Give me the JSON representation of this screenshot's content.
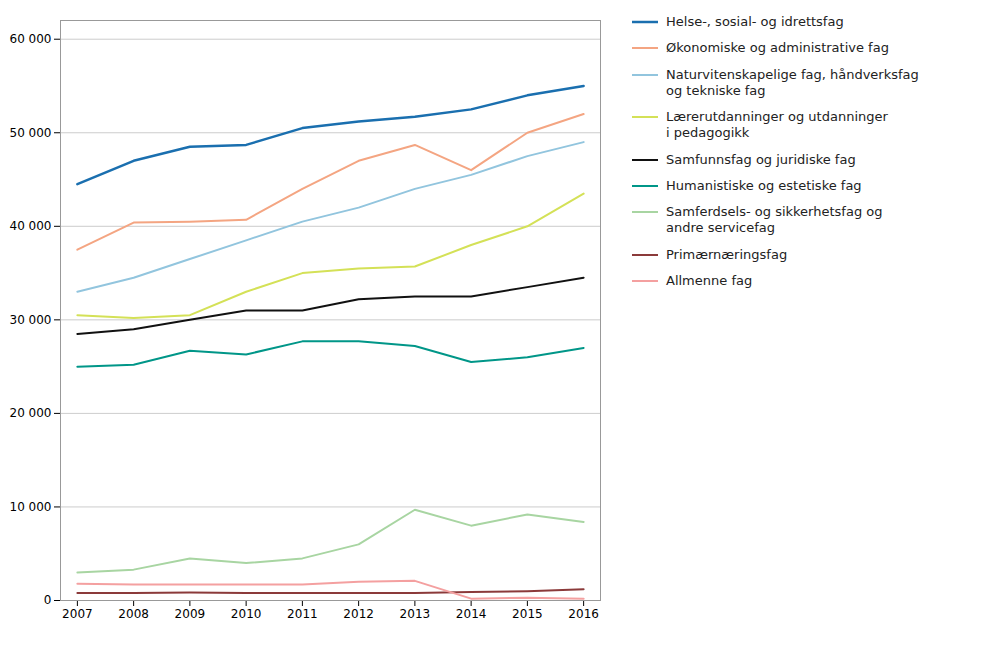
{
  "chart_data": {
    "type": "line",
    "x": [
      2007,
      2008,
      2009,
      2010,
      2011,
      2012,
      2013,
      2014,
      2015,
      2016
    ],
    "xlim": [
      2006.7,
      2016.3
    ],
    "xticks": [
      2007,
      2008,
      2009,
      2010,
      2011,
      2012,
      2013,
      2014,
      2015,
      2016
    ],
    "ylim": [
      0,
      62000
    ],
    "yticks": [
      0,
      {
        "value": 10000,
        "label": "10 000"
      },
      {
        "value": 20000,
        "label": "20 000"
      },
      {
        "value": 30000,
        "label": "30 000"
      },
      {
        "value": 40000,
        "label": "40 000"
      },
      {
        "value": 50000,
        "label": "50 000"
      },
      {
        "value": 60000,
        "label": "60 000"
      }
    ],
    "grid": true,
    "legend": "right",
    "series": [
      {
        "name": "Helse-, sosial- og idrettsfag",
        "color": "#1a6faf",
        "values": [
          44500,
          47000,
          48500,
          48700,
          50500,
          51200,
          51700,
          52500,
          54000,
          55000
        ]
      },
      {
        "name": "Økonomiske og administrative fag",
        "color": "#f4a582",
        "values": [
          37500,
          40400,
          40500,
          40700,
          44000,
          47000,
          48700,
          46000,
          50000,
          52000
        ]
      },
      {
        "name": "Naturvitenskapelige fag, håndverksfag\nog tekniske fag",
        "color": "#92c5de",
        "values": [
          33000,
          34500,
          36500,
          38500,
          40500,
          42000,
          44000,
          45500,
          47500,
          49000
        ]
      },
      {
        "name": "Lærerutdanninger og utdanninger\ni pedagogikk",
        "color": "#d4e157",
        "values": [
          30500,
          30200,
          30500,
          33000,
          35000,
          35500,
          35700,
          38000,
          40000,
          43500
        ]
      },
      {
        "name": "Samfunnsfag og juridiske fag",
        "color": "#111111",
        "values": [
          28500,
          29000,
          30000,
          31000,
          31000,
          32200,
          32500,
          32500,
          33500,
          34500
        ]
      },
      {
        "name": "Humanistiske og estetiske fag",
        "color": "#009688",
        "values": [
          25000,
          25200,
          26700,
          26300,
          27700,
          27700,
          27200,
          25500,
          26000,
          27000
        ]
      },
      {
        "name": "Samferdsels- og sikkerhetsfag og\nandre servicefag",
        "color": "#a8d5a2",
        "values": [
          3000,
          3300,
          4500,
          4000,
          4500,
          6000,
          9700,
          8000,
          9200,
          8400
        ]
      },
      {
        "name": "Primærnæringsfag",
        "color": "#8b3a3a",
        "values": [
          800,
          800,
          850,
          800,
          800,
          800,
          800,
          900,
          1000,
          1200
        ]
      },
      {
        "name": "Allmenne fag",
        "color": "#f4a0a0",
        "values": [
          1800,
          1700,
          1700,
          1700,
          1700,
          2000,
          2100,
          200,
          300,
          200
        ]
      }
    ]
  }
}
